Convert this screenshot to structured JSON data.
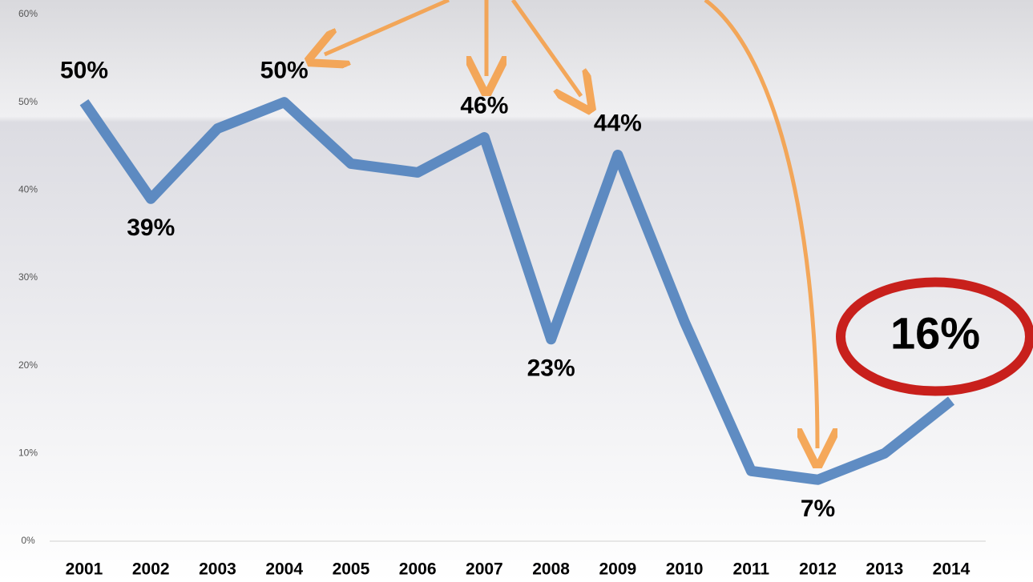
{
  "chart_data": {
    "type": "line",
    "categories": [
      "2001",
      "2002",
      "2003",
      "2004",
      "2005",
      "2006",
      "2007",
      "2008",
      "2009",
      "2010",
      "2011",
      "2012",
      "2013",
      "2014"
    ],
    "series": [
      {
        "color": "#4f81bd",
        "values": [
          50,
          39,
          47,
          50,
          43,
          42,
          46,
          23,
          44,
          25,
          8,
          7,
          10,
          16
        ],
        "value_labels": [
          "50%",
          "39%",
          null,
          "50%",
          null,
          null,
          "46%",
          "23%",
          "44%",
          null,
          null,
          "7%",
          null,
          "16%"
        ]
      }
    ],
    "ylim": [
      0,
      60
    ],
    "yticks": [
      {
        "value": 0,
        "label": "0%"
      },
      {
        "value": 10,
        "label": "10%"
      },
      {
        "value": 20,
        "label": "20%"
      },
      {
        "value": 30,
        "label": "30%"
      },
      {
        "value": 40,
        "label": "40%"
      },
      {
        "value": 50,
        "label": "50%"
      },
      {
        "value": 60,
        "label": "60%"
      }
    ]
  }
}
